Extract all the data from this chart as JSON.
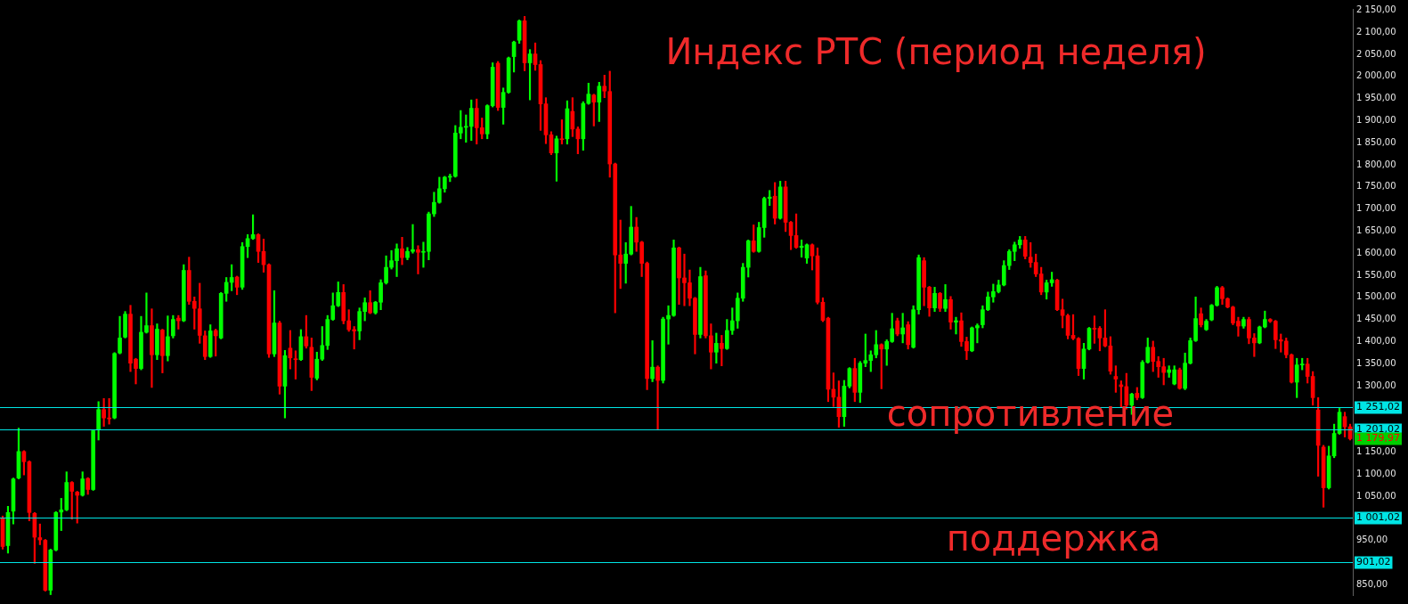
{
  "chart_data": {
    "type": "candlestick",
    "title": "Индекс РТС (период неделя)",
    "categories": [
      null,
      null,
      null,
      null,
      null,
      null,
      null,
      null,
      null,
      null,
      null,
      null,
      null,
      null,
      null,
      null,
      null,
      null,
      null,
      null,
      null,
      null,
      null,
      null,
      null,
      null,
      null,
      null,
      null,
      null,
      null,
      null,
      null,
      null,
      null,
      null,
      null,
      null,
      null,
      null,
      null,
      null,
      null,
      null,
      null,
      null,
      null,
      null,
      null,
      null,
      null,
      null,
      null,
      null,
      null,
      null,
      null,
      null,
      null,
      null,
      null,
      null,
      null,
      null,
      null,
      null,
      null,
      null,
      null,
      null,
      null,
      null,
      null,
      null,
      null,
      null,
      null,
      null,
      null,
      null,
      null,
      null,
      null,
      null,
      null,
      null,
      null,
      null,
      null,
      null,
      null,
      null,
      null,
      null,
      null,
      null,
      null,
      null,
      null,
      null,
      null,
      null,
      null,
      null,
      null,
      null,
      null,
      null,
      null,
      null,
      null,
      null,
      null,
      null,
      null,
      null,
      null,
      null,
      null,
      null,
      null,
      null,
      null,
      null,
      null,
      null,
      null,
      null,
      null,
      null,
      null,
      null,
      null,
      null,
      null,
      null,
      null,
      null,
      null,
      null,
      null,
      null,
      null,
      null,
      null,
      null,
      null,
      null,
      null,
      null,
      null,
      null,
      null,
      null,
      null,
      null,
      null,
      null,
      null,
      null,
      null,
      null,
      null,
      null,
      null,
      null,
      null,
      null,
      null,
      null,
      null,
      null,
      null,
      null,
      null,
      null,
      null,
      null,
      null,
      null,
      null,
      null,
      null,
      null,
      null,
      null,
      null,
      null,
      null,
      null,
      null,
      null,
      null,
      null,
      null,
      null,
      null,
      null,
      null,
      null,
      null,
      null,
      null,
      null,
      null,
      null,
      null,
      null,
      null,
      null,
      null,
      null,
      null,
      null,
      null,
      null,
      null,
      null,
      null,
      null,
      null,
      null,
      null,
      null,
      null,
      null,
      null,
      null,
      null,
      null,
      null,
      null,
      null,
      null,
      null,
      null,
      null,
      null,
      null,
      null,
      null,
      null,
      null,
      null,
      null,
      null,
      null,
      null,
      null,
      null,
      null,
      null,
      null,
      null
    ],
    "ohlc": [
      [
        1000,
        1005,
        930,
        936
      ],
      [
        938,
        1027,
        921,
        1013
      ],
      [
        1016,
        1091,
        987,
        1089
      ],
      [
        1091,
        1204,
        1089,
        1151
      ],
      [
        1151,
        1153,
        1098,
        1128
      ],
      [
        1128,
        1130,
        994,
        1013
      ],
      [
        1011,
        1013,
        898,
        957
      ],
      [
        956,
        987,
        940,
        951
      ],
      [
        950,
        952,
        835,
        837
      ],
      [
        837,
        930,
        827,
        928
      ],
      [
        928,
        1015,
        926,
        1013
      ],
      [
        1014,
        1045,
        972,
        1019
      ],
      [
        1019,
        1105,
        1017,
        1081
      ],
      [
        1081,
        1083,
        998,
        1061
      ],
      [
        1059,
        1061,
        989,
        1052
      ],
      [
        1052,
        1105,
        1050,
        1089
      ],
      [
        1090,
        1092,
        1054,
        1065
      ],
      [
        1065,
        1200,
        1063,
        1198
      ],
      [
        1200,
        1264,
        1177,
        1246
      ],
      [
        1246,
        1271,
        1208,
        1227
      ],
      [
        1227,
        1271,
        1213,
        1225
      ],
      [
        1227,
        1375,
        1225,
        1373
      ],
      [
        1374,
        1457,
        1372,
        1408
      ],
      [
        1410,
        1468,
        1408,
        1462
      ],
      [
        1462,
        1482,
        1332,
        1351
      ],
      [
        1360,
        1362,
        1304,
        1339
      ],
      [
        1339,
        1457,
        1336,
        1421
      ],
      [
        1421,
        1510,
        1419,
        1436
      ],
      [
        1436,
        1474,
        1296,
        1370
      ],
      [
        1370,
        1440,
        1359,
        1428
      ],
      [
        1426,
        1428,
        1329,
        1368
      ],
      [
        1368,
        1458,
        1356,
        1411
      ],
      [
        1413,
        1459,
        1408,
        1450
      ],
      [
        1453,
        1459,
        1428,
        1447
      ],
      [
        1447,
        1574,
        1445,
        1561
      ],
      [
        1561,
        1591,
        1484,
        1491
      ],
      [
        1491,
        1501,
        1428,
        1475
      ],
      [
        1474,
        1532,
        1396,
        1414
      ],
      [
        1413,
        1424,
        1359,
        1366
      ],
      [
        1366,
        1438,
        1364,
        1424
      ],
      [
        1425,
        1428,
        1367,
        1413
      ],
      [
        1408,
        1511,
        1406,
        1509
      ],
      [
        1509,
        1545,
        1491,
        1534
      ],
      [
        1534,
        1574,
        1515,
        1545
      ],
      [
        1546,
        1548,
        1506,
        1523
      ],
      [
        1523,
        1624,
        1518,
        1615
      ],
      [
        1615,
        1642,
        1590,
        1633
      ],
      [
        1633,
        1687,
        1631,
        1642
      ],
      [
        1642,
        1644,
        1579,
        1604
      ],
      [
        1604,
        1632,
        1557,
        1574
      ],
      [
        1574,
        1576,
        1364,
        1372
      ],
      [
        1372,
        1515,
        1366,
        1442
      ],
      [
        1442,
        1446,
        1281,
        1299
      ],
      [
        1299,
        1380,
        1227,
        1368
      ],
      [
        1385,
        1425,
        1338,
        1363
      ],
      [
        1361,
        1379,
        1315,
        1359
      ],
      [
        1359,
        1427,
        1357,
        1411
      ],
      [
        1411,
        1459,
        1385,
        1390
      ],
      [
        1387,
        1408,
        1289,
        1319
      ],
      [
        1317,
        1376,
        1313,
        1360
      ],
      [
        1360,
        1434,
        1357,
        1391
      ],
      [
        1391,
        1459,
        1382,
        1450
      ],
      [
        1450,
        1510,
        1448,
        1481
      ],
      [
        1481,
        1535,
        1479,
        1511
      ],
      [
        1511,
        1529,
        1440,
        1447
      ],
      [
        1447,
        1472,
        1423,
        1427
      ],
      [
        1427,
        1434,
        1383,
        1424
      ],
      [
        1424,
        1476,
        1404,
        1468
      ],
      [
        1468,
        1499,
        1447,
        1488
      ],
      [
        1488,
        1515,
        1463,
        1465
      ],
      [
        1465,
        1491,
        1462,
        1489
      ],
      [
        1489,
        1540,
        1472,
        1533
      ],
      [
        1533,
        1594,
        1530,
        1568
      ],
      [
        1568,
        1606,
        1564,
        1583
      ],
      [
        1583,
        1621,
        1547,
        1610
      ],
      [
        1610,
        1636,
        1574,
        1590
      ],
      [
        1590,
        1613,
        1585,
        1604
      ],
      [
        1604,
        1665,
        1600,
        1608
      ],
      [
        1608,
        1617,
        1553,
        1602
      ],
      [
        1602,
        1625,
        1568,
        1604
      ],
      [
        1604,
        1693,
        1585,
        1689
      ],
      [
        1689,
        1738,
        1683,
        1715
      ],
      [
        1715,
        1772,
        1713,
        1746
      ],
      [
        1746,
        1774,
        1738,
        1772
      ],
      [
        1772,
        1779,
        1762,
        1774
      ],
      [
        1774,
        1889,
        1772,
        1872
      ],
      [
        1872,
        1923,
        1859,
        1885
      ],
      [
        1885,
        1913,
        1851,
        1887
      ],
      [
        1887,
        1947,
        1855,
        1928
      ],
      [
        1928,
        1949,
        1847,
        1884
      ],
      [
        1884,
        1906,
        1859,
        1870
      ],
      [
        1870,
        1936,
        1859,
        1934
      ],
      [
        1934,
        2031,
        1931,
        2021
      ],
      [
        2030,
        2034,
        1923,
        1930
      ],
      [
        1930,
        1974,
        1892,
        1964
      ],
      [
        1964,
        2044,
        1962,
        2042
      ],
      [
        2045,
        2080,
        2010,
        2078
      ],
      [
        2082,
        2128,
        2075,
        2126
      ],
      [
        2126,
        2136,
        2013,
        2031
      ],
      [
        2031,
        2061,
        1947,
        2051
      ],
      [
        2051,
        2076,
        2014,
        2027
      ],
      [
        2027,
        2036,
        1878,
        1938
      ],
      [
        1938,
        1952,
        1848,
        1868
      ],
      [
        1868,
        1875,
        1823,
        1827
      ],
      [
        1827,
        1865,
        1763,
        1859
      ],
      [
        1859,
        1902,
        1847,
        1857
      ],
      [
        1859,
        1945,
        1847,
        1927
      ],
      [
        1921,
        1952,
        1864,
        1881
      ],
      [
        1881,
        1886,
        1825,
        1859
      ],
      [
        1859,
        1943,
        1833,
        1939
      ],
      [
        1939,
        1985,
        1937,
        1960
      ],
      [
        1958,
        1960,
        1888,
        1942
      ],
      [
        1942,
        1987,
        1898,
        1978
      ],
      [
        1978,
        2003,
        1952,
        1967
      ],
      [
        1966,
        2012,
        1772,
        1802
      ],
      [
        1802,
        1804,
        1465,
        1596
      ],
      [
        1596,
        1675,
        1520,
        1577
      ],
      [
        1577,
        1624,
        1532,
        1598
      ],
      [
        1598,
        1706,
        1596,
        1659
      ],
      [
        1659,
        1681,
        1604,
        1625
      ],
      [
        1625,
        1627,
        1547,
        1577
      ],
      [
        1577,
        1580,
        1291,
        1316
      ],
      [
        1316,
        1402,
        1309,
        1342
      ],
      [
        1342,
        1345,
        1202,
        1312
      ],
      [
        1312,
        1455,
        1306,
        1451
      ],
      [
        1451,
        1481,
        1394,
        1459
      ],
      [
        1459,
        1630,
        1457,
        1612
      ],
      [
        1612,
        1614,
        1484,
        1544
      ],
      [
        1544,
        1598,
        1481,
        1533
      ],
      [
        1533,
        1562,
        1481,
        1498
      ],
      [
        1498,
        1500,
        1372,
        1416
      ],
      [
        1416,
        1568,
        1408,
        1547
      ],
      [
        1549,
        1560,
        1408,
        1413
      ],
      [
        1413,
        1440,
        1338,
        1376
      ],
      [
        1376,
        1419,
        1351,
        1396
      ],
      [
        1396,
        1414,
        1345,
        1384
      ],
      [
        1384,
        1450,
        1382,
        1425
      ],
      [
        1425,
        1476,
        1416,
        1447
      ],
      [
        1447,
        1510,
        1430,
        1498
      ],
      [
        1498,
        1577,
        1491,
        1568
      ],
      [
        1568,
        1630,
        1546,
        1628
      ],
      [
        1628,
        1664,
        1602,
        1604
      ],
      [
        1604,
        1670,
        1602,
        1658
      ],
      [
        1658,
        1727,
        1636,
        1724
      ],
      [
        1724,
        1742,
        1708,
        1727
      ],
      [
        1729,
        1760,
        1666,
        1679
      ],
      [
        1679,
        1763,
        1677,
        1750
      ],
      [
        1750,
        1763,
        1649,
        1670
      ],
      [
        1670,
        1672,
        1608,
        1640
      ],
      [
        1640,
        1689,
        1611,
        1613
      ],
      [
        1613,
        1630,
        1591,
        1616
      ],
      [
        1589,
        1621,
        1577,
        1619
      ],
      [
        1619,
        1621,
        1562,
        1594
      ],
      [
        1594,
        1612,
        1485,
        1489
      ],
      [
        1489,
        1499,
        1445,
        1448
      ],
      [
        1453,
        1455,
        1264,
        1292
      ],
      [
        1292,
        1329,
        1253,
        1274
      ],
      [
        1274,
        1311,
        1206,
        1230
      ],
      [
        1230,
        1312,
        1208,
        1299
      ],
      [
        1299,
        1341,
        1295,
        1339
      ],
      [
        1339,
        1362,
        1264,
        1285
      ],
      [
        1285,
        1355,
        1262,
        1351
      ],
      [
        1351,
        1417,
        1343,
        1357
      ],
      [
        1357,
        1379,
        1332,
        1370
      ],
      [
        1370,
        1425,
        1363,
        1393
      ],
      [
        1393,
        1395,
        1293,
        1383
      ],
      [
        1383,
        1404,
        1346,
        1400
      ],
      [
        1400,
        1464,
        1398,
        1429
      ],
      [
        1447,
        1453,
        1413,
        1417
      ],
      [
        1417,
        1464,
        1397,
        1431
      ],
      [
        1438,
        1445,
        1383,
        1393
      ],
      [
        1387,
        1481,
        1385,
        1472
      ],
      [
        1472,
        1596,
        1462,
        1590
      ],
      [
        1583,
        1590,
        1481,
        1523
      ],
      [
        1523,
        1525,
        1457,
        1476
      ],
      [
        1476,
        1523,
        1468,
        1509
      ],
      [
        1509,
        1511,
        1468,
        1475
      ],
      [
        1475,
        1529,
        1468,
        1495
      ],
      [
        1495,
        1502,
        1428,
        1444
      ],
      [
        1444,
        1455,
        1417,
        1447
      ],
      [
        1447,
        1465,
        1389,
        1400
      ],
      [
        1400,
        1410,
        1359,
        1379
      ],
      [
        1379,
        1433,
        1377,
        1431
      ],
      [
        1431,
        1440,
        1397,
        1436
      ],
      [
        1438,
        1481,
        1431,
        1472
      ],
      [
        1472,
        1512,
        1470,
        1501
      ],
      [
        1501,
        1530,
        1489,
        1513
      ],
      [
        1513,
        1539,
        1510,
        1528
      ],
      [
        1528,
        1583,
        1526,
        1572
      ],
      [
        1572,
        1608,
        1563,
        1604
      ],
      [
        1604,
        1625,
        1583,
        1619
      ],
      [
        1619,
        1638,
        1611,
        1630
      ],
      [
        1630,
        1638,
        1587,
        1593
      ],
      [
        1591,
        1624,
        1568,
        1579
      ],
      [
        1579,
        1598,
        1547,
        1553
      ],
      [
        1553,
        1568,
        1506,
        1512
      ],
      [
        1512,
        1539,
        1496,
        1533
      ],
      [
        1533,
        1557,
        1525,
        1540
      ],
      [
        1539,
        1541,
        1470,
        1472
      ],
      [
        1472,
        1496,
        1431,
        1459
      ],
      [
        1459,
        1462,
        1406,
        1414
      ],
      [
        1414,
        1461,
        1404,
        1407
      ],
      [
        1407,
        1409,
        1323,
        1339
      ],
      [
        1339,
        1396,
        1315,
        1383
      ],
      [
        1383,
        1432,
        1381,
        1430
      ],
      [
        1430,
        1458,
        1396,
        1428
      ],
      [
        1430,
        1434,
        1379,
        1408
      ],
      [
        1408,
        1472,
        1388,
        1390
      ],
      [
        1390,
        1411,
        1326,
        1333
      ],
      [
        1321,
        1345,
        1285,
        1315
      ],
      [
        1302,
        1311,
        1251,
        1298
      ],
      [
        1298,
        1328,
        1247,
        1256
      ],
      [
        1256,
        1283,
        1235,
        1281
      ],
      [
        1283,
        1296,
        1268,
        1273
      ],
      [
        1273,
        1357,
        1271,
        1353
      ],
      [
        1353,
        1408,
        1351,
        1387
      ],
      [
        1387,
        1401,
        1332,
        1355
      ],
      [
        1355,
        1366,
        1319,
        1343
      ],
      [
        1343,
        1362,
        1302,
        1330
      ],
      [
        1330,
        1345,
        1319,
        1336
      ],
      [
        1304,
        1345,
        1302,
        1336
      ],
      [
        1336,
        1340,
        1292,
        1294
      ],
      [
        1294,
        1374,
        1291,
        1351
      ],
      [
        1351,
        1408,
        1349,
        1402
      ],
      [
        1402,
        1501,
        1400,
        1452
      ],
      [
        1463,
        1476,
        1433,
        1438
      ],
      [
        1427,
        1450,
        1425,
        1446
      ],
      [
        1449,
        1484,
        1447,
        1482
      ],
      [
        1482,
        1525,
        1480,
        1522
      ],
      [
        1522,
        1525,
        1484,
        1497
      ],
      [
        1497,
        1499,
        1476,
        1478
      ],
      [
        1478,
        1480,
        1438,
        1442
      ],
      [
        1446,
        1455,
        1412,
        1435
      ],
      [
        1435,
        1455,
        1430,
        1450
      ],
      [
        1450,
        1455,
        1395,
        1408
      ],
      [
        1408,
        1418,
        1366,
        1397
      ],
      [
        1397,
        1435,
        1395,
        1433
      ],
      [
        1433,
        1469,
        1431,
        1450
      ],
      [
        1450,
        1452,
        1443,
        1446
      ],
      [
        1446,
        1448,
        1384,
        1404
      ],
      [
        1404,
        1417,
        1376,
        1401
      ],
      [
        1401,
        1408,
        1363,
        1370
      ],
      [
        1370,
        1372,
        1306,
        1308
      ],
      [
        1308,
        1362,
        1273,
        1347
      ],
      [
        1347,
        1362,
        1336,
        1349
      ],
      [
        1349,
        1362,
        1306,
        1321
      ],
      [
        1321,
        1332,
        1256,
        1273
      ],
      [
        1245,
        1273,
        1095,
        1165
      ],
      [
        1161,
        1165,
        1025,
        1069
      ],
      [
        1069,
        1163,
        1066,
        1141
      ],
      [
        1141,
        1213,
        1137,
        1192
      ],
      [
        1192,
        1249,
        1190,
        1240
      ],
      [
        1230,
        1240,
        1184,
        1207
      ],
      [
        1207,
        1213,
        1177,
        1179.97
      ]
    ],
    "ylim": [
      826,
      2153
    ],
    "yticks": [
      {
        "value": 850,
        "label": "850,00"
      },
      {
        "value": 950,
        "label": "950,00"
      },
      {
        "value": 1050,
        "label": "1 050,00"
      },
      {
        "value": 1100,
        "label": "1 100,00"
      },
      {
        "value": 1150,
        "label": "1 150,00"
      },
      {
        "value": 1300,
        "label": "1 300,00"
      },
      {
        "value": 1350,
        "label": "1 350,00"
      },
      {
        "value": 1400,
        "label": "1 400,00"
      },
      {
        "value": 1450,
        "label": "1 450,00"
      },
      {
        "value": 1500,
        "label": "1 500,00"
      },
      {
        "value": 1550,
        "label": "1 550,00"
      },
      {
        "value": 1600,
        "label": "1 600,00"
      },
      {
        "value": 1650,
        "label": "1 650,00"
      },
      {
        "value": 1700,
        "label": "1 700,00"
      },
      {
        "value": 1750,
        "label": "1 750,00"
      },
      {
        "value": 1800,
        "label": "1 800,00"
      },
      {
        "value": 1850,
        "label": "1 850,00"
      },
      {
        "value": 1900,
        "label": "1 900,00"
      },
      {
        "value": 1950,
        "label": "1 950,00"
      },
      {
        "value": 2000,
        "label": "2 000,00"
      },
      {
        "value": 2050,
        "label": "2 050,00"
      },
      {
        "value": 2100,
        "label": "2 100,00"
      },
      {
        "value": 2150,
        "label": "2 150,00"
      }
    ],
    "ref_lines": [
      {
        "axis": "y",
        "value": 1251.02,
        "label": "1 251,02",
        "color": "#00e5e5"
      },
      {
        "axis": "y",
        "value": 1201.02,
        "label": "1 201,02",
        "color": "#00e5e5"
      },
      {
        "axis": "y",
        "value": 1001.02,
        "label": "1 001,02",
        "color": "#00e5e5"
      },
      {
        "axis": "y",
        "value": 901.02,
        "label": "901,02",
        "color": "#00e5e5"
      }
    ],
    "annotations": [
      "сопротивление",
      "поддержка",
      "1 179,97"
    ]
  }
}
